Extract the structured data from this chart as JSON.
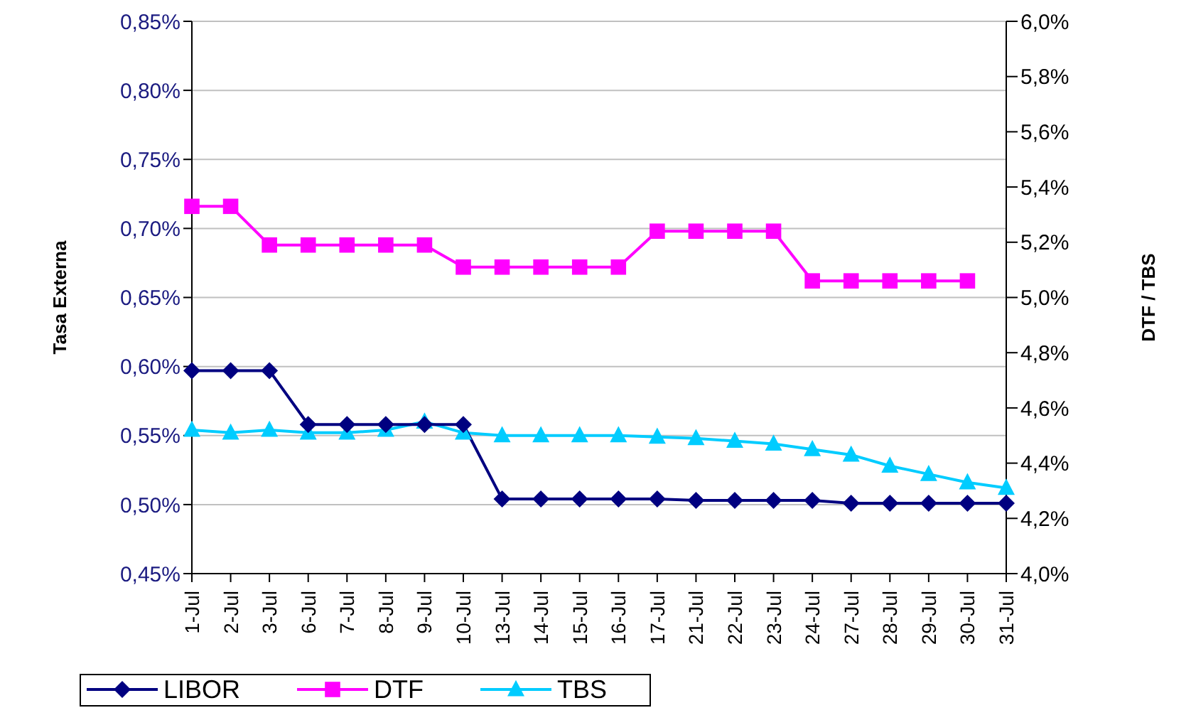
{
  "chart_data": {
    "type": "line",
    "ylabel": "Tasa Externa",
    "y2label": "DTF / TBS",
    "categories": [
      "1-Jul",
      "2-Jul",
      "3-Jul",
      "6-Jul",
      "7-Jul",
      "8-Jul",
      "9-Jul",
      "10-Jul",
      "13-Jul",
      "14-Jul",
      "15-Jul",
      "16-Jul",
      "17-Jul",
      "21-Jul",
      "22-Jul",
      "23-Jul",
      "24-Jul",
      "27-Jul",
      "28-Jul",
      "29-Jul",
      "30-Jul",
      "31-Jul"
    ],
    "series": [
      {
        "name": "LIBOR",
        "color": "#000080",
        "marker": "diamond",
        "values": [
          0.597,
          0.597,
          0.597,
          0.558,
          0.558,
          0.558,
          0.558,
          0.558,
          0.504,
          0.504,
          0.504,
          0.504,
          0.504,
          0.503,
          0.503,
          0.503,
          0.503,
          0.501,
          0.501,
          0.501,
          0.501,
          0.501
        ]
      },
      {
        "name": "DTF",
        "color": "#ff00ff",
        "marker": "square",
        "axis": "y2",
        "values": [
          5.33,
          5.33,
          5.19,
          5.19,
          5.19,
          5.19,
          5.19,
          5.11,
          5.11,
          5.11,
          5.11,
          5.11,
          5.24,
          5.24,
          5.24,
          5.24,
          5.06,
          5.06,
          5.06,
          5.06,
          5.06,
          null
        ]
      },
      {
        "name": "TBS",
        "color": "#00ccff",
        "marker": "triangle",
        "axis": "y2",
        "values": [
          4.52,
          4.51,
          4.52,
          4.51,
          4.51,
          4.52,
          4.55,
          4.51,
          4.5,
          4.5,
          4.5,
          4.5,
          4.495,
          4.49,
          4.48,
          4.47,
          4.45,
          4.43,
          4.39,
          4.36,
          4.33,
          4.31
        ]
      }
    ],
    "ylim": [
      0.45,
      0.85
    ],
    "yticks": [
      {
        "value": 0.45,
        "label": "0,45%"
      },
      {
        "value": 0.5,
        "label": "0,50%"
      },
      {
        "value": 0.55,
        "label": "0,55%"
      },
      {
        "value": 0.6,
        "label": "0,60%"
      },
      {
        "value": 0.65,
        "label": "0,65%"
      },
      {
        "value": 0.7,
        "label": "0,70%"
      },
      {
        "value": 0.75,
        "label": "0,75%"
      },
      {
        "value": 0.8,
        "label": "0,80%"
      },
      {
        "value": 0.85,
        "label": "0,85%"
      }
    ],
    "y2lim": [
      4.0,
      6.0
    ],
    "y2ticks": [
      {
        "value": 4.0,
        "label": "4,0%"
      },
      {
        "value": 4.2,
        "label": "4,2%"
      },
      {
        "value": 4.4,
        "label": "4,4%"
      },
      {
        "value": 4.6,
        "label": "4,6%"
      },
      {
        "value": 4.8,
        "label": "4,8%"
      },
      {
        "value": 5.0,
        "label": "5,0%"
      },
      {
        "value": 5.2,
        "label": "5,2%"
      },
      {
        "value": 5.4,
        "label": "5,4%"
      },
      {
        "value": 5.6,
        "label": "5,6%"
      },
      {
        "value": 5.8,
        "label": "5,8%"
      },
      {
        "value": 6.0,
        "label": "6,0%"
      }
    ],
    "grid": "y",
    "legend": "bottom left",
    "line_style": "solid"
  }
}
